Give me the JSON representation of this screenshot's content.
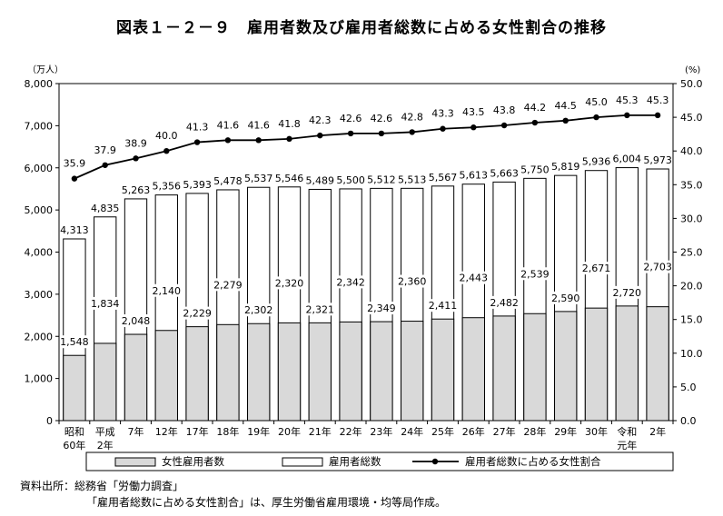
{
  "title": "図表１－２－９　雇用者数及び雇用者総数に占める女性割合の推移",
  "source": {
    "line1": "資料出所：総務省「労働力調査」",
    "line2": "「雇用者総数に占める女性割合」は、厚生労働省雇用環境・均等局作成。"
  },
  "chart_data": {
    "type": "bar",
    "categories": [
      [
        "昭和",
        "60年"
      ],
      [
        "平成",
        "2年"
      ],
      [
        "7年"
      ],
      [
        "12年"
      ],
      [
        "17年"
      ],
      [
        "18年"
      ],
      [
        "19年"
      ],
      [
        "20年"
      ],
      [
        "21年"
      ],
      [
        "22年"
      ],
      [
        "23年"
      ],
      [
        "24年"
      ],
      [
        "25年"
      ],
      [
        "26年"
      ],
      [
        "27年"
      ],
      [
        "28年"
      ],
      [
        "29年"
      ],
      [
        "30年"
      ],
      [
        "令和",
        "元年"
      ],
      [
        "2年"
      ]
    ],
    "left_axis": {
      "unit_label": "（万人）",
      "min": 0,
      "max": 8000,
      "step": 1000,
      "ticks": [
        "0",
        "1,000",
        "2,000",
        "3,000",
        "4,000",
        "5,000",
        "6,000",
        "7,000",
        "8,000"
      ]
    },
    "right_axis": {
      "unit_label": "(%)",
      "min": 0,
      "max": 50,
      "step": 5,
      "ticks": [
        "0.0",
        "5.0",
        "10.0",
        "15.0",
        "20.0",
        "25.0",
        "30.0",
        "35.0",
        "40.0",
        "45.0",
        "50.0"
      ]
    },
    "series": [
      {
        "name": "女性雇用者数",
        "kind": "bar",
        "axis": "left",
        "color": "#d9d9d9",
        "values": [
          1548,
          1834,
          2048,
          2140,
          2229,
          2279,
          2302,
          2320,
          2321,
          2342,
          2349,
          2360,
          2411,
          2443,
          2482,
          2539,
          2590,
          2671,
          2720,
          2703
        ],
        "labels": [
          "1,548",
          "1,834",
          "2,048",
          "2,140",
          "2,229",
          "2,279",
          "2,302",
          "2,320",
          "2,321",
          "2,342",
          "2,349",
          "2,360",
          "2,411",
          "2,443",
          "2,482",
          "2,539",
          "2,590",
          "2,671",
          "2,720",
          "2,703"
        ]
      },
      {
        "name": "雇用者総数",
        "kind": "bar",
        "axis": "left",
        "color": "#ffffff",
        "values": [
          4313,
          4835,
          5263,
          5356,
          5393,
          5478,
          5537,
          5546,
          5489,
          5500,
          5512,
          5513,
          5567,
          5613,
          5663,
          5750,
          5819,
          5936,
          6004,
          5973
        ],
        "labels": [
          "4,313",
          "4,835",
          "5,263",
          "5,356",
          "5,393",
          "5,478",
          "5,537",
          "5,546",
          "5,489",
          "5,500",
          "5,512",
          "5,513",
          "5,567",
          "5,613",
          "5,663",
          "5,750",
          "5,819",
          "5,936",
          "6,004",
          "5,973"
        ]
      },
      {
        "name": "雇用者総数に占める女性割合",
        "kind": "line",
        "axis": "right",
        "color": "#000000",
        "values": [
          35.9,
          37.9,
          38.9,
          40.0,
          41.3,
          41.6,
          41.6,
          41.8,
          42.3,
          42.6,
          42.6,
          42.8,
          43.3,
          43.5,
          43.8,
          44.2,
          44.5,
          45.0,
          45.3,
          45.3
        ],
        "labels": [
          "35.9",
          "37.9",
          "38.9",
          "40.0",
          "41.3",
          "41.6",
          "41.6",
          "41.8",
          "42.3",
          "42.6",
          "42.6",
          "42.8",
          "43.3",
          "43.5",
          "43.8",
          "44.2",
          "44.5",
          "45.0",
          "45.3",
          "45.3"
        ]
      }
    ],
    "grid": false,
    "legend_position": "bottom"
  }
}
